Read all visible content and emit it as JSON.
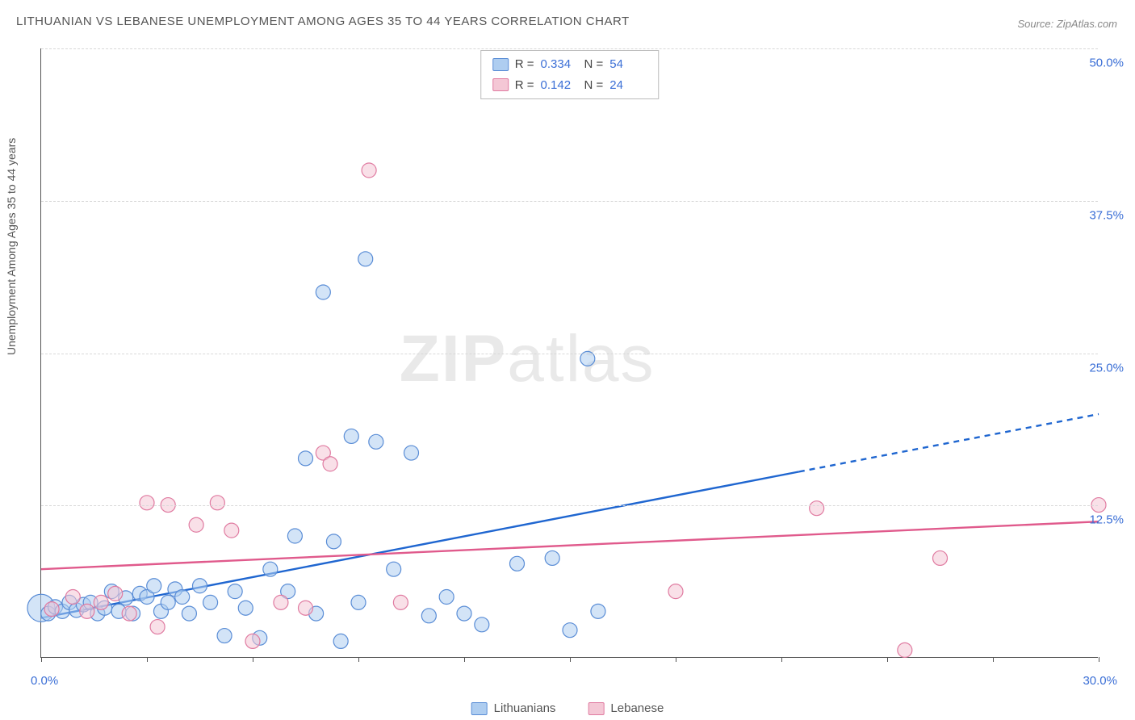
{
  "title": "LITHUANIAN VS LEBANESE UNEMPLOYMENT AMONG AGES 35 TO 44 YEARS CORRELATION CHART",
  "source": "Source: ZipAtlas.com",
  "y_axis_label": "Unemployment Among Ages 35 to 44 years",
  "watermark_bold": "ZIP",
  "watermark_light": "atlas",
  "chart": {
    "type": "scatter",
    "xlim": [
      0,
      30
    ],
    "ylim": [
      0,
      55
    ],
    "x_tick_positions": [
      0,
      3,
      6,
      9,
      12,
      15,
      18,
      21,
      24,
      27,
      30
    ],
    "x_tick_labels_shown": {
      "0": "0.0%",
      "30": "30.0%"
    },
    "y_gridlines": [
      13.75,
      27.5,
      41.25,
      55
    ],
    "y_tick_labels": {
      "13.75": "12.5%",
      "27.5": "25.0%",
      "41.25": "37.5%",
      "55": "50.0%"
    },
    "background_color": "#ffffff",
    "grid_color": "#d8d8d8",
    "axis_color": "#555555",
    "tick_label_color": "#3b6fd6",
    "marker_radius": 9,
    "marker_radius_large": 17,
    "marker_opacity": 0.55,
    "marker_stroke_width": 1.2,
    "series": [
      {
        "name": "Lithuanians",
        "fill_color": "#aecdf0",
        "stroke_color": "#5a8dd6",
        "trend_color": "#1f66d0",
        "trend_width": 2.4,
        "trend_start": [
          0,
          3.6
        ],
        "trend_solid_end": [
          21.5,
          16.8
        ],
        "trend_dashed_end": [
          30,
          22.0
        ],
        "R": "0.334",
        "N": "54",
        "points": [
          [
            0.0,
            4.5,
            17
          ],
          [
            0.2,
            4.0,
            9
          ],
          [
            0.4,
            4.6,
            9
          ],
          [
            0.6,
            4.2,
            9
          ],
          [
            0.8,
            5.0,
            9
          ],
          [
            1.0,
            4.3,
            9
          ],
          [
            1.2,
            4.8,
            9
          ],
          [
            1.4,
            5.0,
            9
          ],
          [
            1.6,
            4.0,
            9
          ],
          [
            1.8,
            4.5,
            9
          ],
          [
            2.0,
            6.0,
            9
          ],
          [
            2.2,
            4.2,
            9
          ],
          [
            2.4,
            5.4,
            9
          ],
          [
            2.6,
            4.0,
            9
          ],
          [
            2.8,
            5.8,
            9
          ],
          [
            3.0,
            5.5,
            9
          ],
          [
            3.2,
            6.5,
            9
          ],
          [
            3.4,
            4.2,
            9
          ],
          [
            3.6,
            5.0,
            9
          ],
          [
            3.8,
            6.2,
            9
          ],
          [
            4.0,
            5.5,
            9
          ],
          [
            4.2,
            4.0,
            9
          ],
          [
            4.5,
            6.5,
            9
          ],
          [
            4.8,
            5.0,
            9
          ],
          [
            5.2,
            2.0,
            9
          ],
          [
            5.5,
            6.0,
            9
          ],
          [
            5.8,
            4.5,
            9
          ],
          [
            6.2,
            1.8,
            9
          ],
          [
            6.5,
            8.0,
            9
          ],
          [
            7.0,
            6.0,
            9
          ],
          [
            7.2,
            11.0,
            9
          ],
          [
            7.5,
            18.0,
            9
          ],
          [
            7.8,
            4.0,
            9
          ],
          [
            8.0,
            33.0,
            9
          ],
          [
            8.3,
            10.5,
            9
          ],
          [
            8.5,
            1.5,
            9
          ],
          [
            8.8,
            20.0,
            9
          ],
          [
            9.0,
            5.0,
            9
          ],
          [
            9.2,
            36.0,
            9
          ],
          [
            9.5,
            19.5,
            9
          ],
          [
            10.0,
            8.0,
            9
          ],
          [
            10.5,
            18.5,
            9
          ],
          [
            11.0,
            3.8,
            9
          ],
          [
            11.5,
            5.5,
            9
          ],
          [
            12.0,
            4.0,
            9
          ],
          [
            12.5,
            3.0,
            9
          ],
          [
            13.5,
            8.5,
            9
          ],
          [
            14.5,
            9.0,
            9
          ],
          [
            15.0,
            2.5,
            9
          ],
          [
            15.5,
            27.0,
            9
          ],
          [
            15.8,
            4.2,
            9
          ]
        ]
      },
      {
        "name": "Lebanese",
        "fill_color": "#f4c7d5",
        "stroke_color": "#e07ba1",
        "trend_color": "#e05a8c",
        "trend_width": 2.4,
        "trend_start": [
          0,
          8.0
        ],
        "trend_solid_end": [
          30,
          12.3
        ],
        "trend_dashed_end": null,
        "R": "0.142",
        "N": "24",
        "points": [
          [
            0.3,
            4.4,
            9
          ],
          [
            0.9,
            5.5,
            9
          ],
          [
            1.3,
            4.2,
            9
          ],
          [
            1.7,
            5.0,
            9
          ],
          [
            2.1,
            5.8,
            9
          ],
          [
            2.5,
            4.0,
            9
          ],
          [
            3.0,
            14.0,
            9
          ],
          [
            3.3,
            2.8,
            9
          ],
          [
            3.6,
            13.8,
            9
          ],
          [
            4.4,
            12.0,
            9
          ],
          [
            5.0,
            14.0,
            9
          ],
          [
            5.4,
            11.5,
            9
          ],
          [
            6.0,
            1.5,
            9
          ],
          [
            6.8,
            5.0,
            9
          ],
          [
            7.5,
            4.5,
            9
          ],
          [
            8.0,
            18.5,
            9
          ],
          [
            8.2,
            17.5,
            9
          ],
          [
            9.3,
            44.0,
            9
          ],
          [
            10.2,
            5.0,
            9
          ],
          [
            18.0,
            6.0,
            9
          ],
          [
            22.0,
            13.5,
            9
          ],
          [
            24.5,
            0.7,
            9
          ],
          [
            25.5,
            9.0,
            9
          ],
          [
            30.0,
            13.8,
            9
          ]
        ]
      }
    ]
  },
  "stats_box": {
    "R_label": "R =",
    "N_label": "N ="
  },
  "legend": {
    "items": [
      "Lithuanians",
      "Lebanese"
    ]
  }
}
